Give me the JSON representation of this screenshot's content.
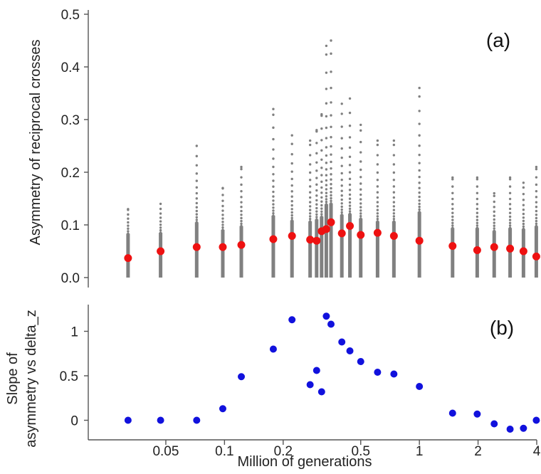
{
  "chart_data": [
    {
      "type": "scatter",
      "panel_label": "(a)",
      "ylabel": "Asymmetry of reciprocal crosses",
      "xscale": "log",
      "xlim": [
        0.02,
        4
      ],
      "ylim": [
        0,
        0.5
      ],
      "yticks": [
        0.0,
        0.1,
        0.2,
        0.3,
        0.4,
        0.5
      ],
      "ytick_labels": [
        "0.0",
        "0.1",
        "0.2",
        "0.3",
        "0.4",
        "0.5"
      ],
      "colors": {
        "raw": "#808080",
        "mean": "#ee1111"
      },
      "raw_distribution_x": [
        0.032,
        0.047,
        0.072,
        0.098,
        0.122,
        0.178,
        0.222,
        0.275,
        0.297,
        0.315,
        0.333,
        0.352,
        0.4,
        0.44,
        0.5,
        0.61,
        0.74,
        1.0,
        1.48,
        1.98,
        2.42,
        2.92,
        3.42,
        3.98
      ],
      "raw_distribution_max": [
        0.13,
        0.14,
        0.25,
        0.17,
        0.21,
        0.32,
        0.27,
        0.26,
        0.28,
        0.31,
        0.44,
        0.45,
        0.33,
        0.34,
        0.29,
        0.26,
        0.26,
        0.36,
        0.19,
        0.19,
        0.16,
        0.19,
        0.18,
        0.21
      ],
      "series": [
        {
          "x": [
            0.032,
            0.047,
            0.072,
            0.098,
            0.122,
            0.178,
            0.222,
            0.275,
            0.297,
            0.315,
            0.333,
            0.352,
            0.4,
            0.44,
            0.5,
            0.61,
            0.74,
            1.0,
            1.48,
            1.98,
            2.42,
            2.92,
            3.42,
            3.98
          ],
          "y": [
            0.037,
            0.05,
            0.058,
            0.058,
            0.062,
            0.073,
            0.079,
            0.072,
            0.07,
            0.088,
            0.092,
            0.105,
            0.084,
            0.098,
            0.081,
            0.085,
            0.079,
            0.07,
            0.06,
            0.052,
            0.058,
            0.055,
            0.05,
            0.04
          ]
        }
      ]
    },
    {
      "type": "scatter",
      "panel_label": "(b)",
      "ylabel_lines": [
        "Slope of",
        "asymmetry vs delta_z"
      ],
      "xlabel": "Million of generations",
      "xscale": "log",
      "xlim": [
        0.02,
        4
      ],
      "ylim": [
        -0.22,
        1.3
      ],
      "yticks": [
        0,
        0.5,
        1
      ],
      "ytick_labels": [
        "0",
        "0.5",
        "1"
      ],
      "xticks": [
        0.05,
        0.1,
        0.2,
        0.5,
        1,
        2,
        4
      ],
      "xtick_labels": [
        "0.05",
        "0.1",
        "0.2",
        "0.5",
        "1",
        "2",
        "4"
      ],
      "colors": {
        "points": "#1111dd"
      },
      "series": [
        {
          "x": [
            0.032,
            0.047,
            0.072,
            0.098,
            0.122,
            0.178,
            0.222,
            0.275,
            0.297,
            0.315,
            0.333,
            0.352,
            0.4,
            0.44,
            0.5,
            0.61,
            0.74,
            1.0,
            1.48,
            1.98,
            2.42,
            2.92,
            3.42,
            3.98
          ],
          "y": [
            0.0,
            0.0,
            0.0,
            0.13,
            0.49,
            0.8,
            1.13,
            0.4,
            0.56,
            0.32,
            1.17,
            1.08,
            0.88,
            0.78,
            0.66,
            0.54,
            0.52,
            0.38,
            0.08,
            0.07,
            -0.04,
            -0.1,
            -0.09,
            0.0
          ]
        }
      ]
    }
  ]
}
